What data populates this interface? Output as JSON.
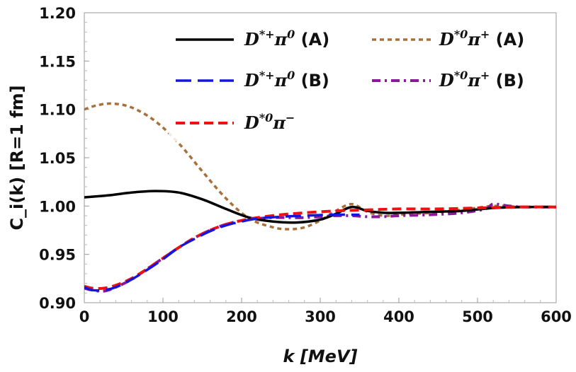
{
  "chart_data": {
    "type": "line",
    "xlabel": "k [MeV]",
    "ylabel": "C_i(k) [R=1 fm]",
    "xlim": [
      0,
      600
    ],
    "ylim": [
      0.9,
      1.2
    ],
    "x_ticks": [
      0,
      100,
      200,
      300,
      400,
      500,
      600
    ],
    "x_tick_labels": [
      "0",
      "100",
      "200",
      "300",
      "400",
      "500",
      "600"
    ],
    "y_ticks": [
      0.9,
      0.95,
      1.0,
      1.05,
      1.1,
      1.15,
      1.2
    ],
    "y_tick_labels": [
      "0.90",
      "0.95",
      "1.00",
      "1.05",
      "1.10",
      "1.15",
      "1.20"
    ],
    "grid": false,
    "legend_position": "top",
    "series": [
      {
        "name": "D*+π0 (A)",
        "base": "D",
        "sup": "*+",
        "pi": "π",
        "pisup": "0",
        "tag": "(A)",
        "color": "#000000",
        "style": "solid",
        "x": [
          0,
          30,
          60,
          90,
          120,
          150,
          180,
          210,
          240,
          270,
          300,
          320,
          340,
          360,
          380,
          400,
          440,
          480,
          520,
          560,
          600
        ],
        "y": [
          1.009,
          1.011,
          1.014,
          1.0155,
          1.014,
          1.007,
          0.997,
          0.988,
          0.984,
          0.983,
          0.986,
          0.992,
          0.999,
          0.995,
          0.993,
          0.993,
          0.994,
          0.995,
          0.998,
          0.999,
          0.999
        ]
      },
      {
        "name": "D*+π0 (B)",
        "base": "D",
        "sup": "*+",
        "pi": "π",
        "pisup": "0",
        "tag": "(B)",
        "color": "#1515e0",
        "style": "longdash",
        "x": [
          0,
          10,
          25,
          40,
          60,
          80,
          100,
          120,
          140,
          160,
          180,
          200,
          220,
          250,
          280,
          310,
          340,
          350
        ],
        "y": [
          0.916,
          0.913,
          0.913,
          0.916,
          0.924,
          0.934,
          0.945,
          0.957,
          0.966,
          0.974,
          0.98,
          0.984,
          0.987,
          0.989,
          0.99,
          0.991,
          0.991,
          0.991
        ]
      },
      {
        "name": "D*0π− ",
        "base": "D",
        "sup": "*0",
        "pi": "π",
        "pisup": "−",
        "tag": "",
        "color": "#ee1111",
        "style": "dash",
        "x": [
          0,
          10,
          25,
          40,
          60,
          80,
          100,
          120,
          140,
          160,
          180,
          200,
          220,
          250,
          280,
          320,
          360,
          400,
          450,
          500,
          550,
          600
        ],
        "y": [
          0.917,
          0.915,
          0.915,
          0.918,
          0.925,
          0.935,
          0.946,
          0.957,
          0.967,
          0.975,
          0.981,
          0.985,
          0.988,
          0.991,
          0.993,
          0.995,
          0.996,
          0.997,
          0.997,
          0.998,
          0.999,
          0.999
        ]
      },
      {
        "name": "D*0π+ (A)",
        "base": "D",
        "sup": "*0",
        "pi": "π",
        "pisup": "+",
        "tag": "(A)",
        "color": "#a8703a",
        "style": "shortdash",
        "x": [
          0,
          15,
          35,
          60,
          90,
          120,
          150,
          180,
          210,
          240,
          260,
          280,
          300,
          320,
          340,
          360,
          380,
          400,
          440,
          480,
          520,
          560,
          600
        ],
        "y": [
          1.1,
          1.104,
          1.106,
          1.102,
          1.088,
          1.065,
          1.036,
          1.008,
          0.987,
          0.978,
          0.976,
          0.978,
          0.985,
          0.995,
          1.002,
          0.994,
          0.99,
          0.991,
          0.993,
          0.996,
          1.0,
          0.999,
          0.999
        ]
      },
      {
        "name": "D*0π+ (B)",
        "base": "D",
        "sup": "*0",
        "pi": "π",
        "pisup": "+",
        "tag": "(B)",
        "color": "#8a1a9a",
        "style": "dashdot",
        "x": [
          0,
          10,
          25,
          40,
          60,
          80,
          100,
          120,
          140,
          160,
          180,
          200,
          220,
          240,
          260,
          280,
          300,
          320,
          340,
          360,
          380,
          400,
          440,
          480,
          510,
          520,
          540,
          560,
          600
        ],
        "y": [
          0.915,
          0.913,
          0.912,
          0.916,
          0.924,
          0.935,
          0.946,
          0.957,
          0.967,
          0.975,
          0.981,
          0.985,
          0.987,
          0.988,
          0.988,
          0.988,
          0.989,
          0.99,
          0.99,
          0.989,
          0.989,
          0.99,
          0.991,
          0.993,
          0.997,
          1.002,
          1.0,
          0.999,
          0.999
        ]
      }
    ]
  }
}
